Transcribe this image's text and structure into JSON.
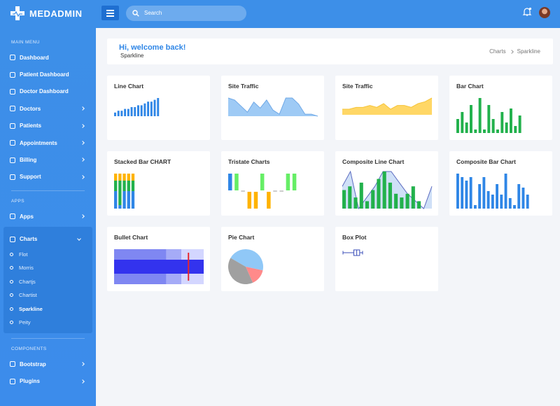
{
  "brand": "MEDADMIN",
  "search_placeholder": "Search",
  "sidebar": [
    {
      "heading": "MAIN MENU",
      "items": [
        {
          "label": "Dashboard"
        },
        {
          "label": "Patient Dashboard"
        },
        {
          "label": "Doctor Dashboard"
        },
        {
          "label": "Doctors",
          "arrow": true
        },
        {
          "label": "Patients",
          "arrow": true
        },
        {
          "label": "Appointments",
          "arrow": true
        },
        {
          "label": "Billing",
          "arrow": true
        },
        {
          "label": "Support",
          "arrow": true
        }
      ]
    },
    {
      "heading": "APPS",
      "items": [
        {
          "label": "Apps",
          "arrow": true
        },
        {
          "label": "Charts",
          "open": true,
          "children": [
            {
              "label": "Flot"
            },
            {
              "label": "Morris"
            },
            {
              "label": "Chartjs"
            },
            {
              "label": "Chartist"
            },
            {
              "label": "Sparkline",
              "active": true
            },
            {
              "label": "Peity"
            }
          ]
        }
      ]
    },
    {
      "heading": "COMPONENTS",
      "items": [
        {
          "label": "Bootstrap",
          "arrow": true
        },
        {
          "label": "Plugins",
          "arrow": true
        }
      ]
    }
  ],
  "header": {
    "welcome": "Hi, welcome back!",
    "subtitle": "Sparkline",
    "breadcrumb": [
      "Charts",
      "Sparkline"
    ]
  },
  "cards": [
    {
      "title": "Line Chart",
      "type": "bar",
      "color": "#2f86e6",
      "values": [
        2,
        3,
        3,
        4,
        4,
        5,
        5,
        6,
        6,
        7,
        8,
        8,
        9,
        10
      ]
    },
    {
      "title": "Site Traffic",
      "type": "area",
      "line_color": "#6fa8e6",
      "fill_color": "#9ecaf5",
      "values": [
        9,
        8,
        5,
        2,
        7,
        4,
        8,
        3,
        1,
        9,
        9,
        6,
        1,
        1,
        0
      ]
    },
    {
      "title": "Site Traffic",
      "type": "area",
      "line_color": "#f6c43a",
      "fill_color": "#ffd766",
      "values": [
        3,
        3,
        4,
        4,
        5,
        4,
        6,
        3,
        5,
        5,
        4,
        6,
        7,
        9
      ]
    },
    {
      "title": "Bar Chart",
      "type": "bar",
      "color": "#22b14c",
      "values": [
        4,
        6,
        3,
        8,
        1,
        10,
        1,
        8,
        4,
        1,
        6,
        3,
        7,
        2,
        5
      ]
    },
    {
      "title": "Stacked Bar CHART",
      "type": "stacked",
      "series": [
        {
          "color": "#2f86e6",
          "values": [
            5,
            1,
            5,
            5,
            5
          ]
        },
        {
          "color": "#22b14c",
          "values": [
            3,
            7,
            3,
            3,
            3
          ]
        },
        {
          "color": "#ffb300",
          "values": [
            2,
            2,
            2,
            2,
            2
          ]
        }
      ]
    },
    {
      "title": "Tristate Charts",
      "type": "tristate",
      "values": [
        1,
        1,
        0,
        -1,
        -1,
        1,
        -1,
        0,
        0,
        1,
        1
      ],
      "colors": [
        "#2f86e6",
        "#66ee66",
        "#999999",
        "#ffb300",
        "#ffb300",
        "#66ee66",
        "#ffb300",
        "#999999",
        "#999999",
        "#66ee66",
        "#66ee66"
      ]
    },
    {
      "title": "Composite Line Chart",
      "type": "composite",
      "bars": {
        "color": "#22b14c",
        "values": [
          5,
          6,
          3,
          7,
          2,
          5,
          8,
          10,
          7,
          4,
          3,
          4,
          6,
          2
        ]
      },
      "line": {
        "line_color": "#5c6bc0",
        "fill_color": "#cfe0f7",
        "values": [
          6,
          10,
          0,
          3,
          6,
          10,
          10,
          7,
          4,
          2,
          0,
          6
        ]
      }
    },
    {
      "title": "Composite Bar Chart",
      "type": "bar",
      "color": "#2f86e6",
      "values": [
        10,
        9,
        8,
        9,
        1,
        7,
        9,
        5,
        4,
        7,
        4,
        10,
        3,
        1,
        7,
        6,
        4
      ]
    },
    {
      "title": "Bullet Chart",
      "type": "bullet",
      "ranges": [
        100,
        75,
        58
      ],
      "range_colors": [
        "#d3d6ff",
        "#a5abf7",
        "#7f87f2"
      ],
      "performance": 100,
      "performance_color": "#3333ee",
      "target": 83,
      "target_color": "#e8262e"
    },
    {
      "title": "Pie Chart",
      "type": "pie",
      "values": [
        45,
        15,
        40
      ],
      "colors": [
        "#90c8f7",
        "#ff8a8a",
        "#a0a0a0"
      ]
    },
    {
      "title": "Box Plot",
      "type": "box",
      "color": "#3b4fb8",
      "low": 1,
      "q1": 6.5,
      "median": 8,
      "q3": 9.5,
      "high": 11
    }
  ]
}
